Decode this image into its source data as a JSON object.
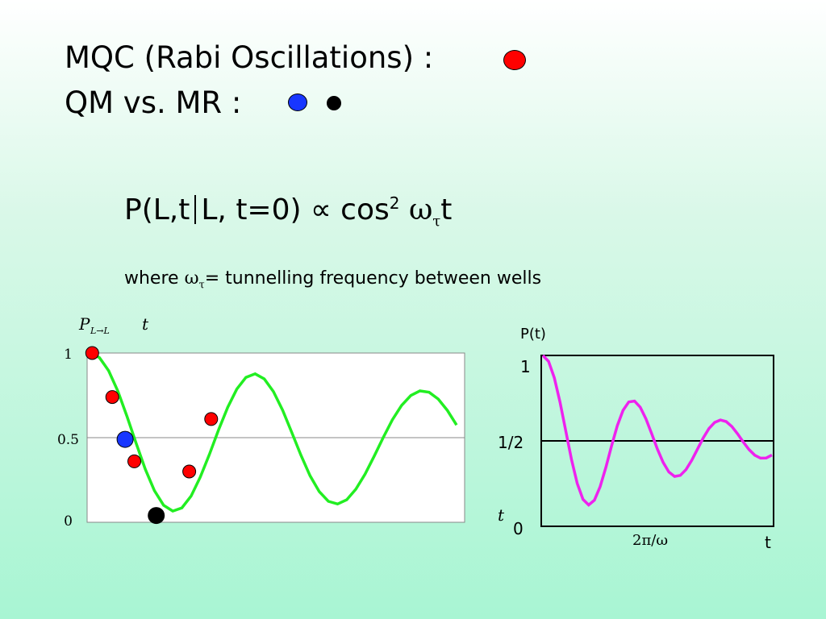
{
  "header": {
    "line1": "MQC (Rabi Oscillations) :",
    "line2": "QM vs. MR :"
  },
  "colors": {
    "red_marker": "#ff0000",
    "blue_marker": "#1836ff",
    "black_marker": "#000000",
    "left_curve": "#22ee22",
    "right_curve": "#ee22ee"
  },
  "formula": {
    "lhs_start": "P(L,t",
    "lhs_end": "L, t=0)",
    "proportional": "∝",
    "cos": "cos",
    "power": "2",
    "omega": "ω",
    "omega_sub": "τ",
    "t": "t"
  },
  "definition": {
    "prefix": "where ",
    "omega": "ω",
    "omega_sub": "τ",
    "suffix": "= tunnelling frequency between wells"
  },
  "chart_data": [
    {
      "type": "line",
      "title": "",
      "ylabel": "P",
      "ylabel_sub": "L→L",
      "xlabel": "t",
      "y_ticks": [
        "1",
        "0.5",
        "0"
      ],
      "ylim": [
        0,
        1
      ],
      "grid": true,
      "series": [
        {
          "kind": "curve",
          "color": "#22ee22",
          "x": [
            0,
            0.25,
            0.5,
            0.75,
            1,
            1.25,
            1.5,
            1.75,
            2,
            2.25,
            2.5,
            2.75,
            3,
            3.25,
            3.5,
            3.75,
            4,
            4.25,
            4.5,
            4.75,
            5,
            5.25,
            5.5,
            5.75,
            6,
            6.25,
            6.5,
            6.75,
            7,
            7.25,
            7.5,
            7.75,
            8,
            8.25,
            8.5,
            8.75,
            9,
            9.25,
            9.5,
            9.75,
            10
          ],
          "y": [
            1.0,
            0.973,
            0.895,
            0.775,
            0.626,
            0.466,
            0.314,
            0.187,
            0.101,
            0.066,
            0.085,
            0.155,
            0.266,
            0.401,
            0.545,
            0.679,
            0.787,
            0.856,
            0.877,
            0.847,
            0.772,
            0.662,
            0.531,
            0.397,
            0.275,
            0.181,
            0.124,
            0.108,
            0.133,
            0.195,
            0.284,
            0.391,
            0.502,
            0.606,
            0.691,
            0.749,
            0.776,
            0.768,
            0.728,
            0.661,
            0.575
          ]
        },
        {
          "kind": "markers",
          "name": "",
          "color": "#ff0000",
          "points": [
            [
              0.05,
              1.0
            ],
            [
              0.6,
              0.74
            ],
            [
              1.2,
              0.36
            ],
            [
              2.7,
              0.3
            ],
            [
              3.3,
              0.61
            ]
          ]
        },
        {
          "kind": "markers",
          "name": "",
          "color": "#1836ff",
          "points": [
            [
              0.95,
              0.49
            ]
          ]
        },
        {
          "kind": "markers",
          "name": "",
          "color": "#000000",
          "points": [
            [
              1.8,
              0.04
            ]
          ]
        }
      ]
    },
    {
      "type": "line",
      "title": "",
      "ylabel": "P(t)",
      "xlabel": "t",
      "x_axis_label_italic": "t",
      "x_tick_label": "2π/ω",
      "y_ticks": [
        "1",
        "1/2",
        "0"
      ],
      "ylim": [
        0,
        1
      ],
      "series": [
        {
          "kind": "curve",
          "color": "#ee22ee",
          "x": [
            0,
            0.25,
            0.5,
            0.75,
            1,
            1.25,
            1.5,
            1.75,
            2,
            2.25,
            2.5,
            2.75,
            3,
            3.25,
            3.5,
            3.75,
            4,
            4.25,
            4.5,
            4.75,
            5,
            5.25,
            5.5,
            5.75,
            6,
            6.25,
            6.5,
            6.75,
            7,
            7.25,
            7.5,
            7.75,
            8,
            8.25,
            8.5,
            8.75,
            9,
            9.25,
            9.5,
            9.75,
            10
          ],
          "y": [
            1.0,
            0.965,
            0.869,
            0.726,
            0.558,
            0.391,
            0.251,
            0.158,
            0.125,
            0.153,
            0.232,
            0.345,
            0.471,
            0.589,
            0.679,
            0.728,
            0.733,
            0.697,
            0.629,
            0.542,
            0.452,
            0.374,
            0.318,
            0.292,
            0.298,
            0.332,
            0.387,
            0.452,
            0.517,
            0.572,
            0.608,
            0.622,
            0.613,
            0.584,
            0.541,
            0.493,
            0.449,
            0.416,
            0.399,
            0.4,
            0.417
          ]
        }
      ]
    }
  ]
}
